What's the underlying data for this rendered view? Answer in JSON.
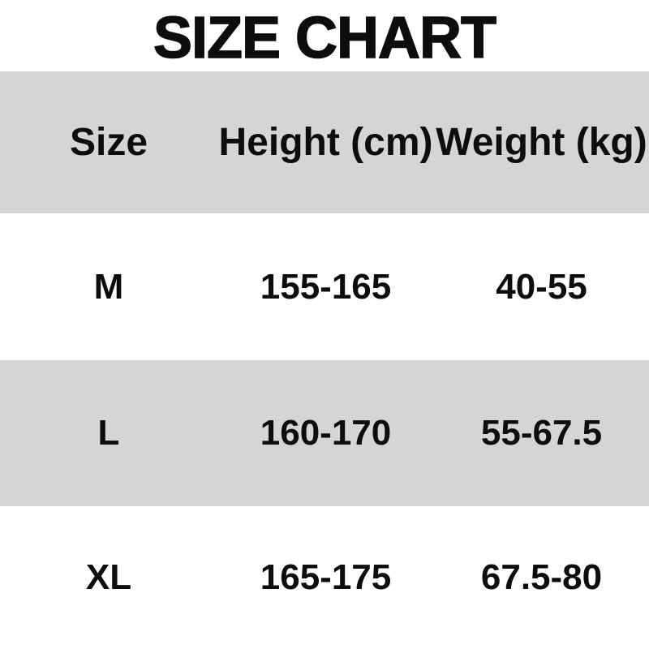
{
  "title": "SIZE CHART",
  "table": {
    "headers": [
      "Size",
      "Height (cm)",
      "Weight (kg)"
    ],
    "rows": [
      {
        "size": "M",
        "height": "155-165",
        "weight": "40-55"
      },
      {
        "size": "L",
        "height": "160-170",
        "weight": "55-67.5"
      },
      {
        "size": "XL",
        "height": "165-175",
        "weight": "67.5-80"
      }
    ]
  },
  "colors": {
    "band_gray": "#d5d5d5",
    "background": "#ffffff",
    "text": "#0d0d0d"
  },
  "chart_data": {
    "type": "table",
    "title": "SIZE CHART",
    "columns": [
      "Size",
      "Height (cm)",
      "Weight (kg)"
    ],
    "rows": [
      [
        "M",
        "155-165",
        "40-55"
      ],
      [
        "L",
        "160-170",
        "55-67.5"
      ],
      [
        "XL",
        "165-175",
        "67.5-80"
      ]
    ],
    "layout_hints": {
      "row_banding": [
        "gray-header",
        "white",
        "gray",
        "white"
      ],
      "full_bleed_bands": true,
      "text_align": "center"
    }
  }
}
